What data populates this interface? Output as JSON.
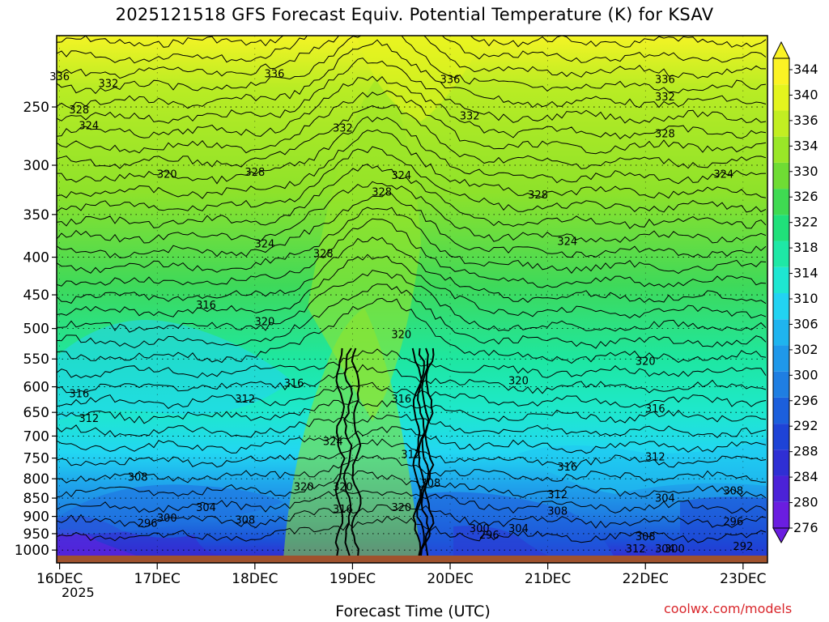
{
  "chart_data": {
    "type": "heatmap",
    "title": "2025121518 GFS Forecast Equiv. Potential Temperature (K) for KSAV",
    "xlabel": "Forecast Time (UTC)",
    "ylabel": "",
    "x_ticks": [
      "16DEC",
      "17DEC",
      "18DEC",
      "19DEC",
      "20DEC",
      "21DEC",
      "22DEC",
      "23DEC"
    ],
    "x_tick_days": [
      16,
      17,
      18,
      19,
      20,
      21,
      22,
      23
    ],
    "year_label": "2025",
    "xlim_days": [
      15.97,
      23.25
    ],
    "y_ticks": [
      250,
      300,
      350,
      400,
      450,
      500,
      550,
      600,
      650,
      700,
      750,
      800,
      850,
      900,
      950,
      1000
    ],
    "ylim": [
      1020,
      200
    ],
    "y_axis_log_pressure": true,
    "grid": "dotted horizontal at pressure ticks",
    "colorbar": {
      "levels": [
        276,
        280,
        284,
        288,
        292,
        296,
        300,
        302,
        306,
        310,
        314,
        318,
        322,
        326,
        330,
        334,
        336,
        340,
        344
      ],
      "label_values": [
        "344",
        "340",
        "336",
        "334",
        "330",
        "326",
        "322",
        "318",
        "314",
        "310",
        "306",
        "302",
        "300",
        "296",
        "292",
        "288",
        "284",
        "280",
        "276"
      ],
      "colors": [
        "#6a1de0",
        "#4b22d8",
        "#2f2fd4",
        "#1e43d6",
        "#1c5fdc",
        "#1f7ee2",
        "#1f98ea",
        "#1fb4ef",
        "#22d3f2",
        "#1ee6d2",
        "#1ee8a6",
        "#20e07a",
        "#3fda52",
        "#6fdc34",
        "#9ae628",
        "#c2ee22",
        "#e4f41e",
        "#fbf324"
      ],
      "placement": "right"
    },
    "contour_labels": [
      {
        "v": "336",
        "t": 16.0,
        "p": 230
      },
      {
        "v": "332",
        "t": 16.5,
        "p": 235
      },
      {
        "v": "336",
        "t": 18.2,
        "p": 228
      },
      {
        "v": "336",
        "t": 20.0,
        "p": 232
      },
      {
        "v": "336",
        "t": 22.2,
        "p": 232
      },
      {
        "v": "332",
        "t": 22.2,
        "p": 245
      },
      {
        "v": "328",
        "t": 16.2,
        "p": 255
      },
      {
        "v": "324",
        "t": 16.3,
        "p": 268
      },
      {
        "v": "332",
        "t": 18.9,
        "p": 270
      },
      {
        "v": "332",
        "t": 20.2,
        "p": 260
      },
      {
        "v": "328",
        "t": 22.2,
        "p": 275
      },
      {
        "v": "320",
        "t": 17.1,
        "p": 312
      },
      {
        "v": "328",
        "t": 18.0,
        "p": 310
      },
      {
        "v": "324",
        "t": 19.5,
        "p": 313
      },
      {
        "v": "328",
        "t": 19.3,
        "p": 330
      },
      {
        "v": "328",
        "t": 20.9,
        "p": 333
      },
      {
        "v": "324",
        "t": 22.8,
        "p": 312
      },
      {
        "v": "324",
        "t": 18.1,
        "p": 388
      },
      {
        "v": "328",
        "t": 18.7,
        "p": 400
      },
      {
        "v": "324",
        "t": 21.2,
        "p": 385
      },
      {
        "v": "316",
        "t": 17.5,
        "p": 470
      },
      {
        "v": "320",
        "t": 18.1,
        "p": 495
      },
      {
        "v": "320",
        "t": 19.5,
        "p": 515
      },
      {
        "v": "320",
        "t": 22.0,
        "p": 560
      },
      {
        "v": "316",
        "t": 18.4,
        "p": 600
      },
      {
        "v": "316",
        "t": 16.2,
        "p": 620
      },
      {
        "v": "312",
        "t": 17.9,
        "p": 630
      },
      {
        "v": "316",
        "t": 19.5,
        "p": 630
      },
      {
        "v": "320",
        "t": 20.7,
        "p": 595
      },
      {
        "v": "316",
        "t": 22.1,
        "p": 650
      },
      {
        "v": "312",
        "t": 16.3,
        "p": 670
      },
      {
        "v": "324",
        "t": 18.8,
        "p": 720
      },
      {
        "v": "312",
        "t": 19.6,
        "p": 750
      },
      {
        "v": "316",
        "t": 21.2,
        "p": 780
      },
      {
        "v": "312",
        "t": 22.1,
        "p": 755
      },
      {
        "v": "308",
        "t": 16.8,
        "p": 805
      },
      {
        "v": "320",
        "t": 18.5,
        "p": 830
      },
      {
        "v": "320",
        "t": 18.9,
        "p": 830
      },
      {
        "v": "308",
        "t": 19.8,
        "p": 820
      },
      {
        "v": "308",
        "t": 22.9,
        "p": 840
      },
      {
        "v": "312",
        "t": 21.1,
        "p": 850
      },
      {
        "v": "304",
        "t": 22.2,
        "p": 860
      },
      {
        "v": "304",
        "t": 17.5,
        "p": 885
      },
      {
        "v": "320",
        "t": 19.5,
        "p": 885
      },
      {
        "v": "316",
        "t": 18.9,
        "p": 890
      },
      {
        "v": "308",
        "t": 21.1,
        "p": 895
      },
      {
        "v": "300",
        "t": 17.1,
        "p": 915
      },
      {
        "v": "296",
        "t": 16.9,
        "p": 930
      },
      {
        "v": "308",
        "t": 17.9,
        "p": 920
      },
      {
        "v": "300",
        "t": 20.3,
        "p": 945
      },
      {
        "v": "304",
        "t": 20.7,
        "p": 945
      },
      {
        "v": "296",
        "t": 22.9,
        "p": 925
      },
      {
        "v": "296",
        "t": 20.4,
        "p": 965
      },
      {
        "v": "308",
        "t": 22.0,
        "p": 970
      },
      {
        "v": "292",
        "t": 23.0,
        "p": 1000
      },
      {
        "v": "300",
        "t": 22.3,
        "p": 1020
      },
      {
        "v": "312",
        "t": 21.9,
        "p": 1025
      },
      {
        "v": "304",
        "t": 22.2,
        "p": 1060
      }
    ]
  },
  "page": {
    "title": "2025121518 GFS Forecast Equiv. Potential Temperature (K) for KSAV",
    "xlabel": "Forecast Time (UTC)",
    "credit": "coolwx.com/models",
    "year": "2025"
  }
}
